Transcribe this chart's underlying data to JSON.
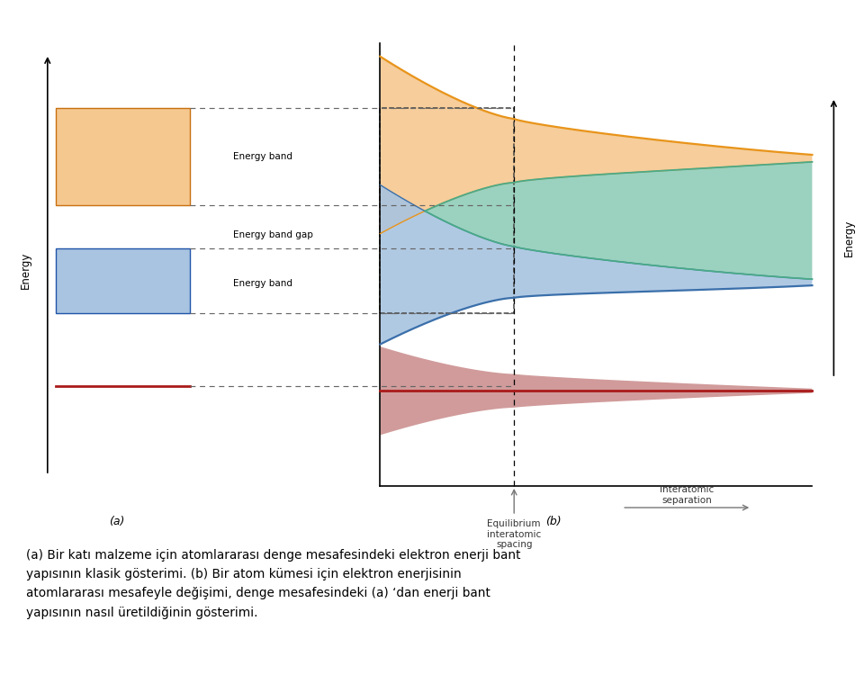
{
  "fig_width": 9.6,
  "fig_height": 7.5,
  "bg_color": "#ffffff",
  "caption_line1": "(a) Bir katı malzeme için atomlararası denge mesafesindeki elektron enerji bant",
  "caption_line2": "yapısının klasik gösterimi. (b) Bir atom kümesi için elektron enerjisinin",
  "caption_line3": "atomlararası mesafeyle değişimi, denge mesafesindeki (a) ‘dan enerji bant",
  "caption_line4": "yapısının nasıl üretildiğinin gösterimi.",
  "orange_color": "#e8941a",
  "blue_color": "#3a6faa",
  "teal_color": "#4aaa88",
  "red_color": "#aa1a1a",
  "orange_fill": "#f5c890",
  "blue_fill": "#a8c4e0",
  "teal_fill": "#90ccb8",
  "red_fill": "#cc9090",
  "dashed_color": "#555555",
  "label_a": "(a)",
  "label_b": "(b)",
  "energy_band_upper": "Energy band",
  "energy_band_gap": "Energy band gap",
  "energy_band_lower": "Energy band",
  "equilibrium_label": "Equilibrium\ninteratomic\nspacing",
  "interatomic_label": "Interatomic\nseparation",
  "energy_left_label": "Energy",
  "energy_right_label": "Energy"
}
